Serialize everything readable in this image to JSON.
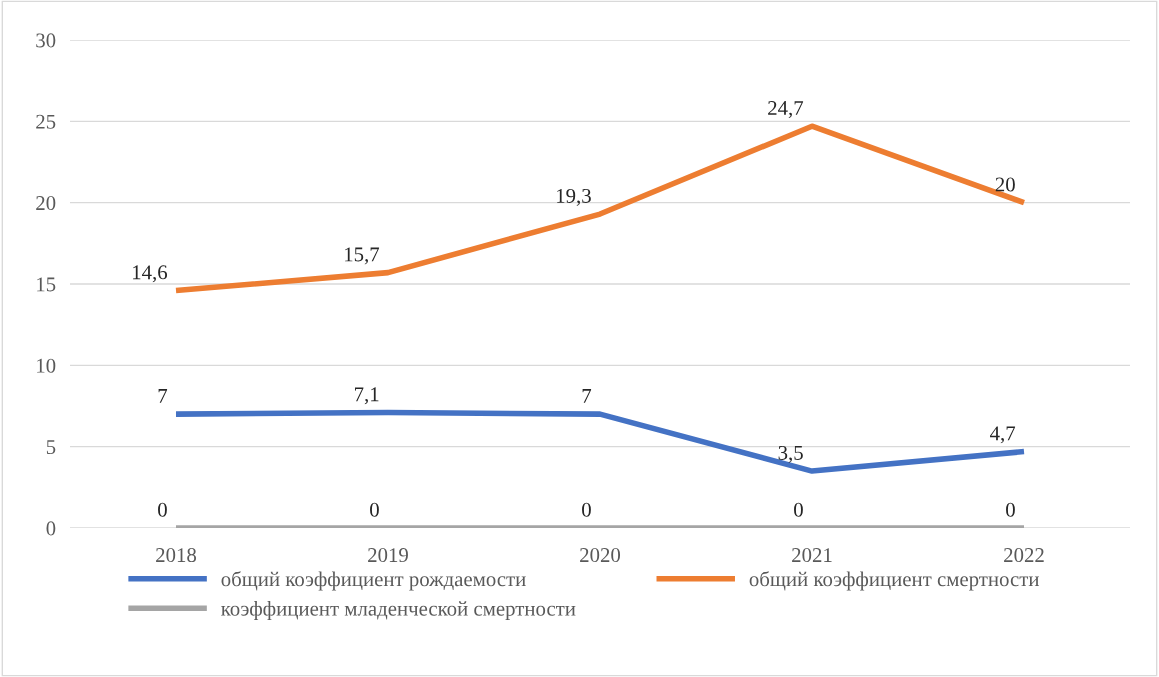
{
  "chart_data": {
    "type": "line",
    "categories": [
      "2018",
      "2019",
      "2020",
      "2021",
      "2022"
    ],
    "series": [
      {
        "name": "общий коэффициент рождаемости",
        "color": "#4472c4",
        "values": [
          7,
          7.1,
          7,
          3.5,
          4.7
        ],
        "value_labels": [
          "7",
          "7,1",
          "7",
          "3,5",
          "4,7"
        ]
      },
      {
        "name": "общий коэффициент смертности",
        "color": "#ed7d31",
        "values": [
          14.6,
          15.7,
          19.3,
          24.7,
          20
        ],
        "value_labels": [
          "14,6",
          "15,7",
          "19,3",
          "24,7",
          "20"
        ]
      },
      {
        "name": "коэффициент младенческой смертности",
        "color": "#a5a5a5",
        "values": [
          0,
          0,
          0,
          0,
          0
        ],
        "value_labels": [
          "0",
          "0",
          "0",
          "0",
          "0"
        ]
      }
    ],
    "ylim": [
      0,
      30
    ],
    "yticks": [
      0,
      5,
      10,
      15,
      20,
      25,
      30
    ],
    "grid": "y",
    "legend": "bottom",
    "marker": "none",
    "line_style": "solid"
  }
}
